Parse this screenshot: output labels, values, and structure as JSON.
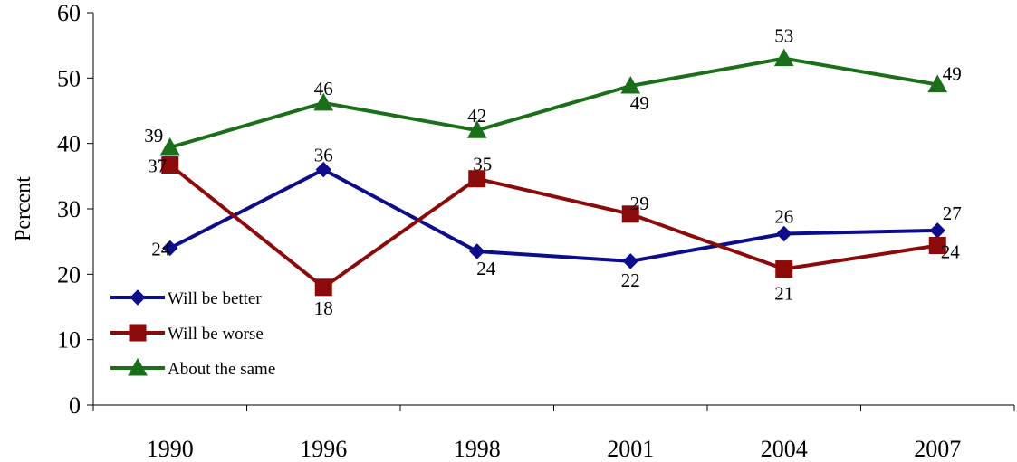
{
  "chart_data": {
    "type": "line",
    "title": "",
    "xlabel": "",
    "ylabel": "Percent",
    "ylim": [
      0,
      60
    ],
    "yticks": [
      "0",
      "10",
      "20",
      "30",
      "40",
      "50",
      "60"
    ],
    "categories": [
      "1990",
      "1996",
      "1998",
      "2001",
      "2004",
      "2007"
    ],
    "legend_position": "bottom-left",
    "grid": false,
    "series": [
      {
        "name": "Will be better",
        "color": "#0d0d8c",
        "marker": "diamond",
        "values": [
          24,
          36,
          23.5,
          22,
          26.2,
          26.7
        ],
        "labels": [
          "24",
          "36",
          "24",
          "22",
          "26",
          "27"
        ]
      },
      {
        "name": "Will be worse",
        "color": "#8b0a0a",
        "marker": "square",
        "values": [
          36.7,
          18,
          34.6,
          29.2,
          20.8,
          24.4
        ],
        "labels": [
          "37",
          "18",
          "35",
          "29",
          "21",
          "24"
        ]
      },
      {
        "name": "About the same",
        "color": "#1b6f1b",
        "marker": "triangle",
        "values": [
          39.4,
          46.2,
          42,
          48.8,
          53,
          49
        ],
        "labels": [
          "39",
          "46",
          "42",
          "49",
          "53",
          "49"
        ]
      }
    ]
  }
}
